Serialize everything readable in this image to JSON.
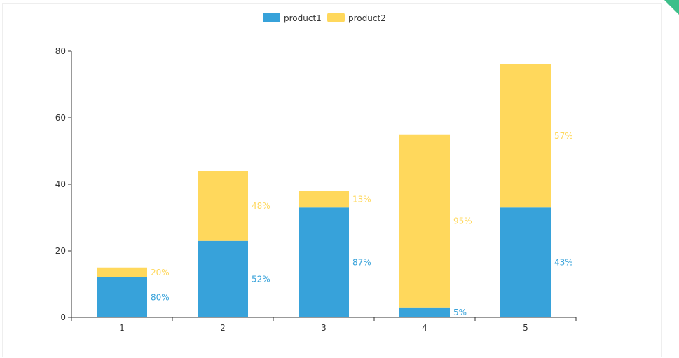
{
  "chart_data": {
    "type": "bar",
    "stacked": true,
    "categories": [
      "1",
      "2",
      "3",
      "4",
      "5"
    ],
    "series": [
      {
        "name": "product1",
        "values": [
          12,
          23,
          33,
          3,
          33
        ],
        "labels": [
          "80%",
          "52%",
          "87%",
          "5%",
          "43%"
        ]
      },
      {
        "name": "product2",
        "values": [
          3,
          21,
          5,
          52,
          43
        ],
        "labels": [
          "20%",
          "48%",
          "13%",
          "95%",
          "57%"
        ]
      }
    ],
    "ylim": [
      0,
      80
    ],
    "yticks": [
      "0",
      "20",
      "40",
      "60",
      "80"
    ],
    "legend_position": "top-center",
    "grid": false
  },
  "colors": {
    "product1": "#37a2da",
    "product2": "#ffd85c",
    "axis": "#333333",
    "corner_ribbon": "#3dbf8a"
  }
}
